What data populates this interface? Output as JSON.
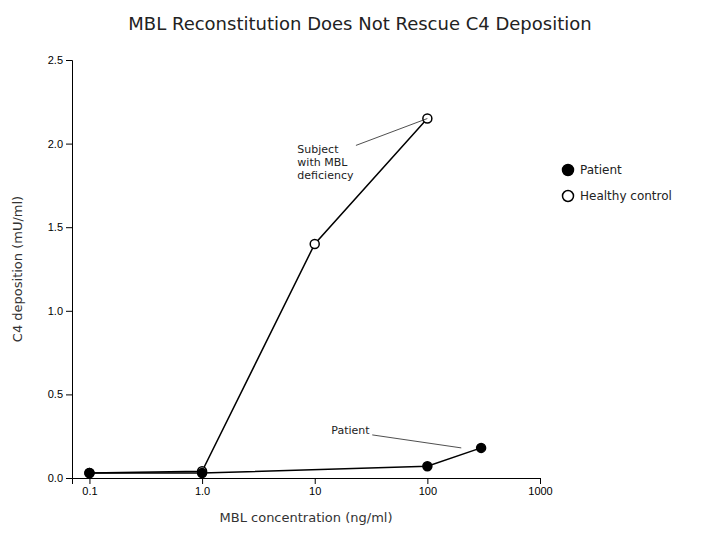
{
  "chart_data": {
    "type": "line",
    "title": "MBL Reconstitution Does Not Rescue C4 Deposition",
    "xlabel": "MBL concentration (ng/ml)",
    "ylabel": "C4 deposition (mU/ml)",
    "log": "x",
    "grid": false,
    "legend": "right",
    "xlim": [
      0.07,
      1000
    ],
    "xticks": [
      0.1,
      {
        "value": 1.0,
        "label": "1.0"
      },
      10,
      100,
      1000
    ],
    "ylim": [
      0.0,
      2.5
    ],
    "yticks": [
      {
        "value": 0.0,
        "label": "0.0"
      },
      0.5,
      {
        "value": 1.0,
        "label": "1.0"
      },
      1.5,
      {
        "value": 2.0,
        "label": "2.0"
      },
      2.5
    ],
    "series": [
      {
        "name": "Healthy control",
        "color": "#000000",
        "marker": "circle-open",
        "x": [
          0.1,
          1.0,
          10,
          100
        ],
        "values": [
          0.03,
          0.04,
          1.4,
          2.15
        ]
      },
      {
        "name": "Patient",
        "color": "#000000",
        "marker": "circle",
        "x": [
          0.1,
          1.0,
          100,
          300
        ],
        "values": [
          0.03,
          0.03,
          0.07,
          0.18
        ]
      }
    ],
    "annotations": [
      {
        "text": "Subject\nwith MBL\ndeficiency",
        "x": 100,
        "y": 2.15
      },
      {
        "text": "Patient",
        "x": 200,
        "y": 0.18
      }
    ]
  }
}
